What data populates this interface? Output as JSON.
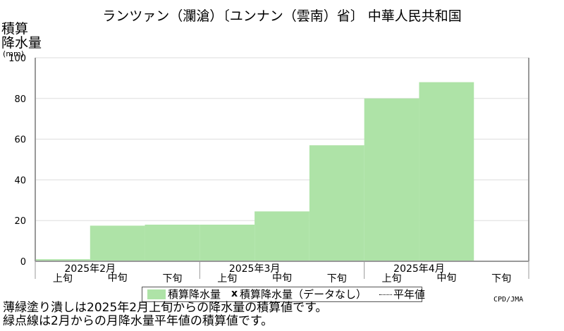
{
  "title": "ランツァン（瀾滄）〔ユンナン（雲南）省〕 中華人民共和国",
  "ylabel_lines": [
    "積算",
    "降水量",
    "(mm)"
  ],
  "legend": {
    "filled": "積算降水量",
    "missing_mark": "x",
    "missing": "積算降水量（データなし）",
    "normal": "平年値"
  },
  "credit": "CPD/JMA",
  "notes": [
    "薄緑塗り潰しは2025年2月上旬からの降水量の積算値です。",
    "緑点線は2月からの月降水量平年値の積算値です。"
  ],
  "colors": {
    "fill": "#aee3a7",
    "axis": "#999999",
    "grid": "#dddddd"
  },
  "chart_data": {
    "type": "area",
    "title": "ランツァン（瀾滄）〔ユンナン（雲南）省〕 中華人民共和国",
    "ylabel": "積算降水量 (mm)",
    "ylim": [
      0,
      100
    ],
    "yticks": [
      0,
      20,
      40,
      60,
      80,
      100
    ],
    "grid": true,
    "legend_position": "bottom",
    "x_dekads": [
      "上旬",
      "中旬",
      "下旬",
      "上旬",
      "中旬",
      "下旬",
      "上旬",
      "中旬",
      "下旬"
    ],
    "x_months": [
      "2025年2月",
      "2025年3月",
      "2025年4月"
    ],
    "series": [
      {
        "name": "積算降水量",
        "values": [
          1,
          17.5,
          18,
          18,
          24.5,
          57,
          80,
          88,
          null
        ]
      }
    ]
  }
}
